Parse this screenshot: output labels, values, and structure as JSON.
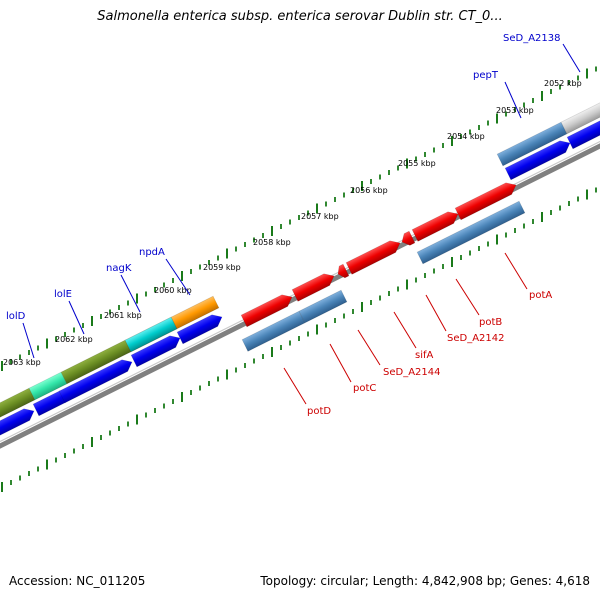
{
  "title": "Salmonella enterica subsp. enterica serovar Dublin str. CT_0...",
  "footer": {
    "accession": "Accession: NC_011205",
    "topology": "Topology: circular; Length: 4,842,908 bp; Genes: 4,618"
  },
  "colors": {
    "cds_blue": "#0000ee",
    "steel_blue": "#4a84b8",
    "red": "#ee0000",
    "olive": "#6b8e23",
    "aquamarine": "#33e6aa",
    "orange": "#ff9900",
    "cyan": "#00cccc",
    "grey": "#cccccc",
    "backbone": "#808080",
    "tick_green": "#1a7a1a",
    "label_blue": "#0000cc",
    "label_red": "#cc0000"
  },
  "kbp_ticks": [
    "2052 kbp",
    "2053 kbp",
    "2054 kbp",
    "2055 kbp",
    "2056 kbp",
    "2057 kbp",
    "2058 kbp",
    "2059 kbp",
    "2060 kbp",
    "2061 kbp",
    "2062 kbp",
    "2063 kbp"
  ],
  "labels": {
    "blue": [
      "SeD_A2138",
      "pepT",
      "npdA",
      "nagK",
      "lolE",
      "lolD"
    ],
    "red": [
      "potA",
      "potB",
      "SeD_A2142",
      "sifA",
      "SeD_A2144",
      "potC",
      "potD"
    ]
  }
}
